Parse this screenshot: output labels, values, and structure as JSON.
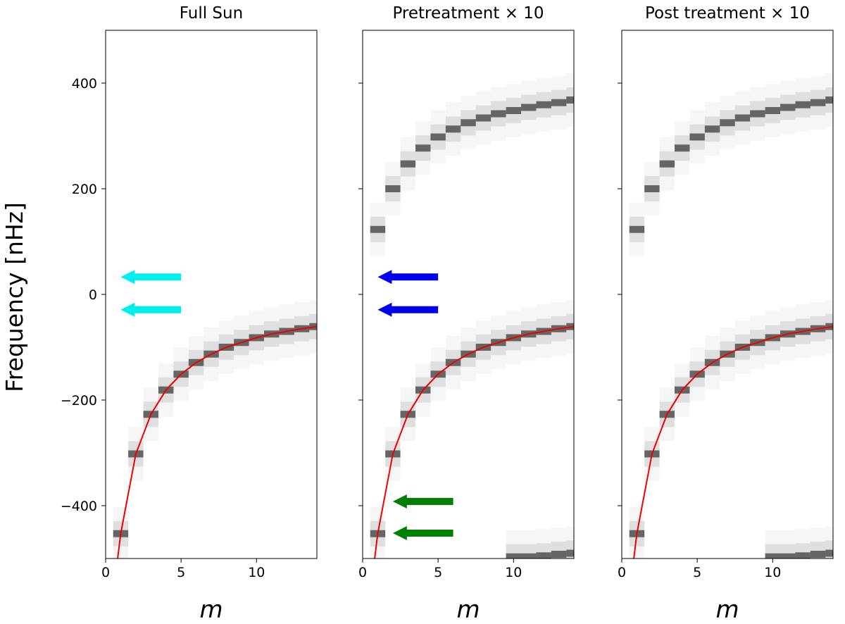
{
  "chart_data": {
    "type": "heatmap",
    "ylabel": "Frequency [nHz]",
    "xlabel": "m",
    "xlim": [
      0,
      14
    ],
    "ylim": [
      -500,
      500
    ],
    "xticks": [
      0,
      5,
      10
    ],
    "yticks": [
      -400,
      -200,
      0,
      200,
      400
    ],
    "ytick_labels": [
      "−400",
      "−200",
      "0",
      "200",
      "400"
    ],
    "model_curve": {
      "name": "Rossby-wave dispersion (red line)",
      "m": [
        0.8,
        1,
        2,
        3,
        4,
        5,
        6,
        7,
        8,
        9,
        10,
        11,
        12,
        13,
        14
      ],
      "freq_nhz": [
        -500,
        -453,
        -302,
        -227,
        -181,
        -151,
        -129,
        -113,
        -100,
        -91,
        -82,
        -75,
        -70,
        -65,
        -61
      ]
    },
    "panels": [
      {
        "title": "Full Sun",
        "power_ridges": [
          {
            "name": "sectoral ridge",
            "m": [
              1,
              2,
              3,
              4,
              5,
              6,
              7,
              8,
              9,
              10,
              11,
              12,
              13,
              14
            ],
            "freq_nhz": [
              -453,
              -302,
              -227,
              -181,
              -151,
              -129,
              -113,
              -100,
              -91,
              -82,
              -75,
              -70,
              -65,
              -61
            ]
          }
        ],
        "arrows": [
          {
            "color": "#00eeee",
            "freq_nhz": 33,
            "m_tip": 1,
            "m_tail": 5
          },
          {
            "color": "#00eeee",
            "freq_nhz": -29,
            "m_tip": 1,
            "m_tail": 5
          }
        ]
      },
      {
        "title": "Pretreatment × 10",
        "power_ridges": [
          {
            "name": "lower ridge",
            "m": [
              1,
              2,
              3,
              4,
              5,
              6,
              7,
              8,
              9,
              10,
              11,
              12,
              13,
              14
            ],
            "freq_nhz": [
              -453,
              -302,
              -227,
              -181,
              -151,
              -129,
              -113,
              -100,
              -91,
              -82,
              -75,
              -70,
              -65,
              -61
            ]
          },
          {
            "name": "upper ridge",
            "m": [
              1,
              2,
              3,
              4,
              5,
              6,
              7,
              8,
              9,
              10,
              11,
              12,
              13,
              14
            ],
            "freq_nhz": [
              123,
              200,
              247,
              277,
              298,
              313,
              325,
              334,
              342,
              348,
              354,
              359,
              363,
              368
            ]
          },
          {
            "name": "aliased ridge",
            "m": [
              10,
              11,
              12,
              13,
              14
            ],
            "freq_nhz": [
              -497,
              -497,
              -495,
              -492,
              -490
            ]
          }
        ],
        "arrows": [
          {
            "color": "#0000ee",
            "freq_nhz": 33,
            "m_tip": 1,
            "m_tail": 5
          },
          {
            "color": "#0000ee",
            "freq_nhz": -29,
            "m_tip": 1,
            "m_tail": 5
          },
          {
            "color": "#008000",
            "freq_nhz": -392,
            "m_tip": 2,
            "m_tail": 6
          },
          {
            "color": "#008000",
            "freq_nhz": -452,
            "m_tip": 2,
            "m_tail": 6
          }
        ]
      },
      {
        "title": "Post treatment × 10",
        "power_ridges": [
          {
            "name": "lower ridge",
            "m": [
              1,
              2,
              3,
              4,
              5,
              6,
              7,
              8,
              9,
              10,
              11,
              12,
              13,
              14
            ],
            "freq_nhz": [
              -453,
              -302,
              -227,
              -181,
              -151,
              -129,
              -113,
              -100,
              -91,
              -82,
              -75,
              -70,
              -65,
              -61
            ]
          },
          {
            "name": "upper ridge",
            "m": [
              1,
              2,
              3,
              4,
              5,
              6,
              7,
              8,
              9,
              10,
              11,
              12,
              13,
              14
            ],
            "freq_nhz": [
              123,
              200,
              247,
              277,
              298,
              313,
              325,
              334,
              342,
              348,
              354,
              359,
              363,
              368
            ]
          },
          {
            "name": "aliased ridge",
            "m": [
              10,
              11,
              12,
              13,
              14
            ],
            "freq_nhz": [
              -497,
              -497,
              -495,
              -492,
              -490
            ]
          }
        ],
        "arrows": []
      }
    ]
  }
}
